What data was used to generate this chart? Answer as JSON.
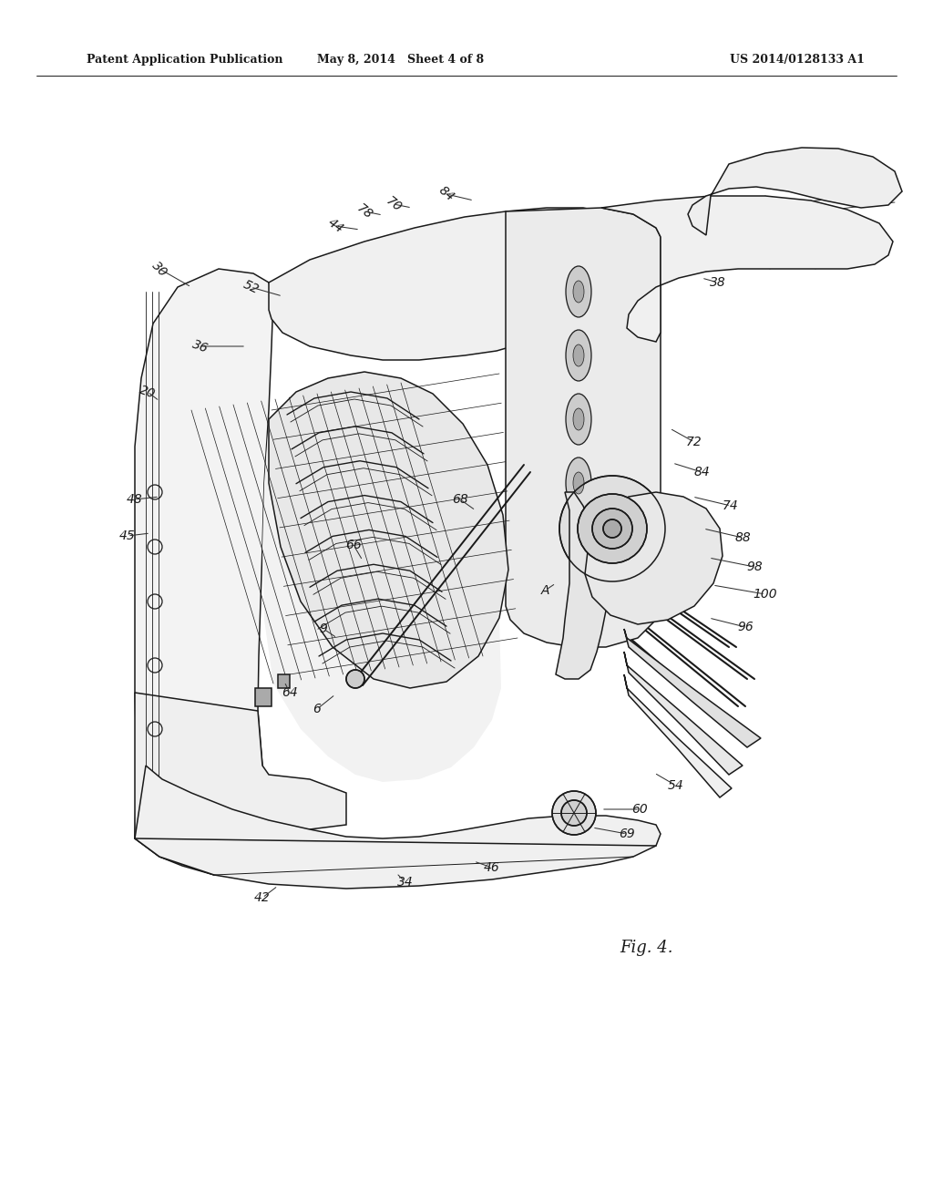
{
  "background_color": "#ffffff",
  "header_left": "Patent Application Publication",
  "header_center": "May 8, 2014   Sheet 4 of 8",
  "header_right": "US 2014/0128133 A1",
  "figure_label": "Fig. 4.",
  "lc": "#1a1a1a",
  "lw": 1.1
}
